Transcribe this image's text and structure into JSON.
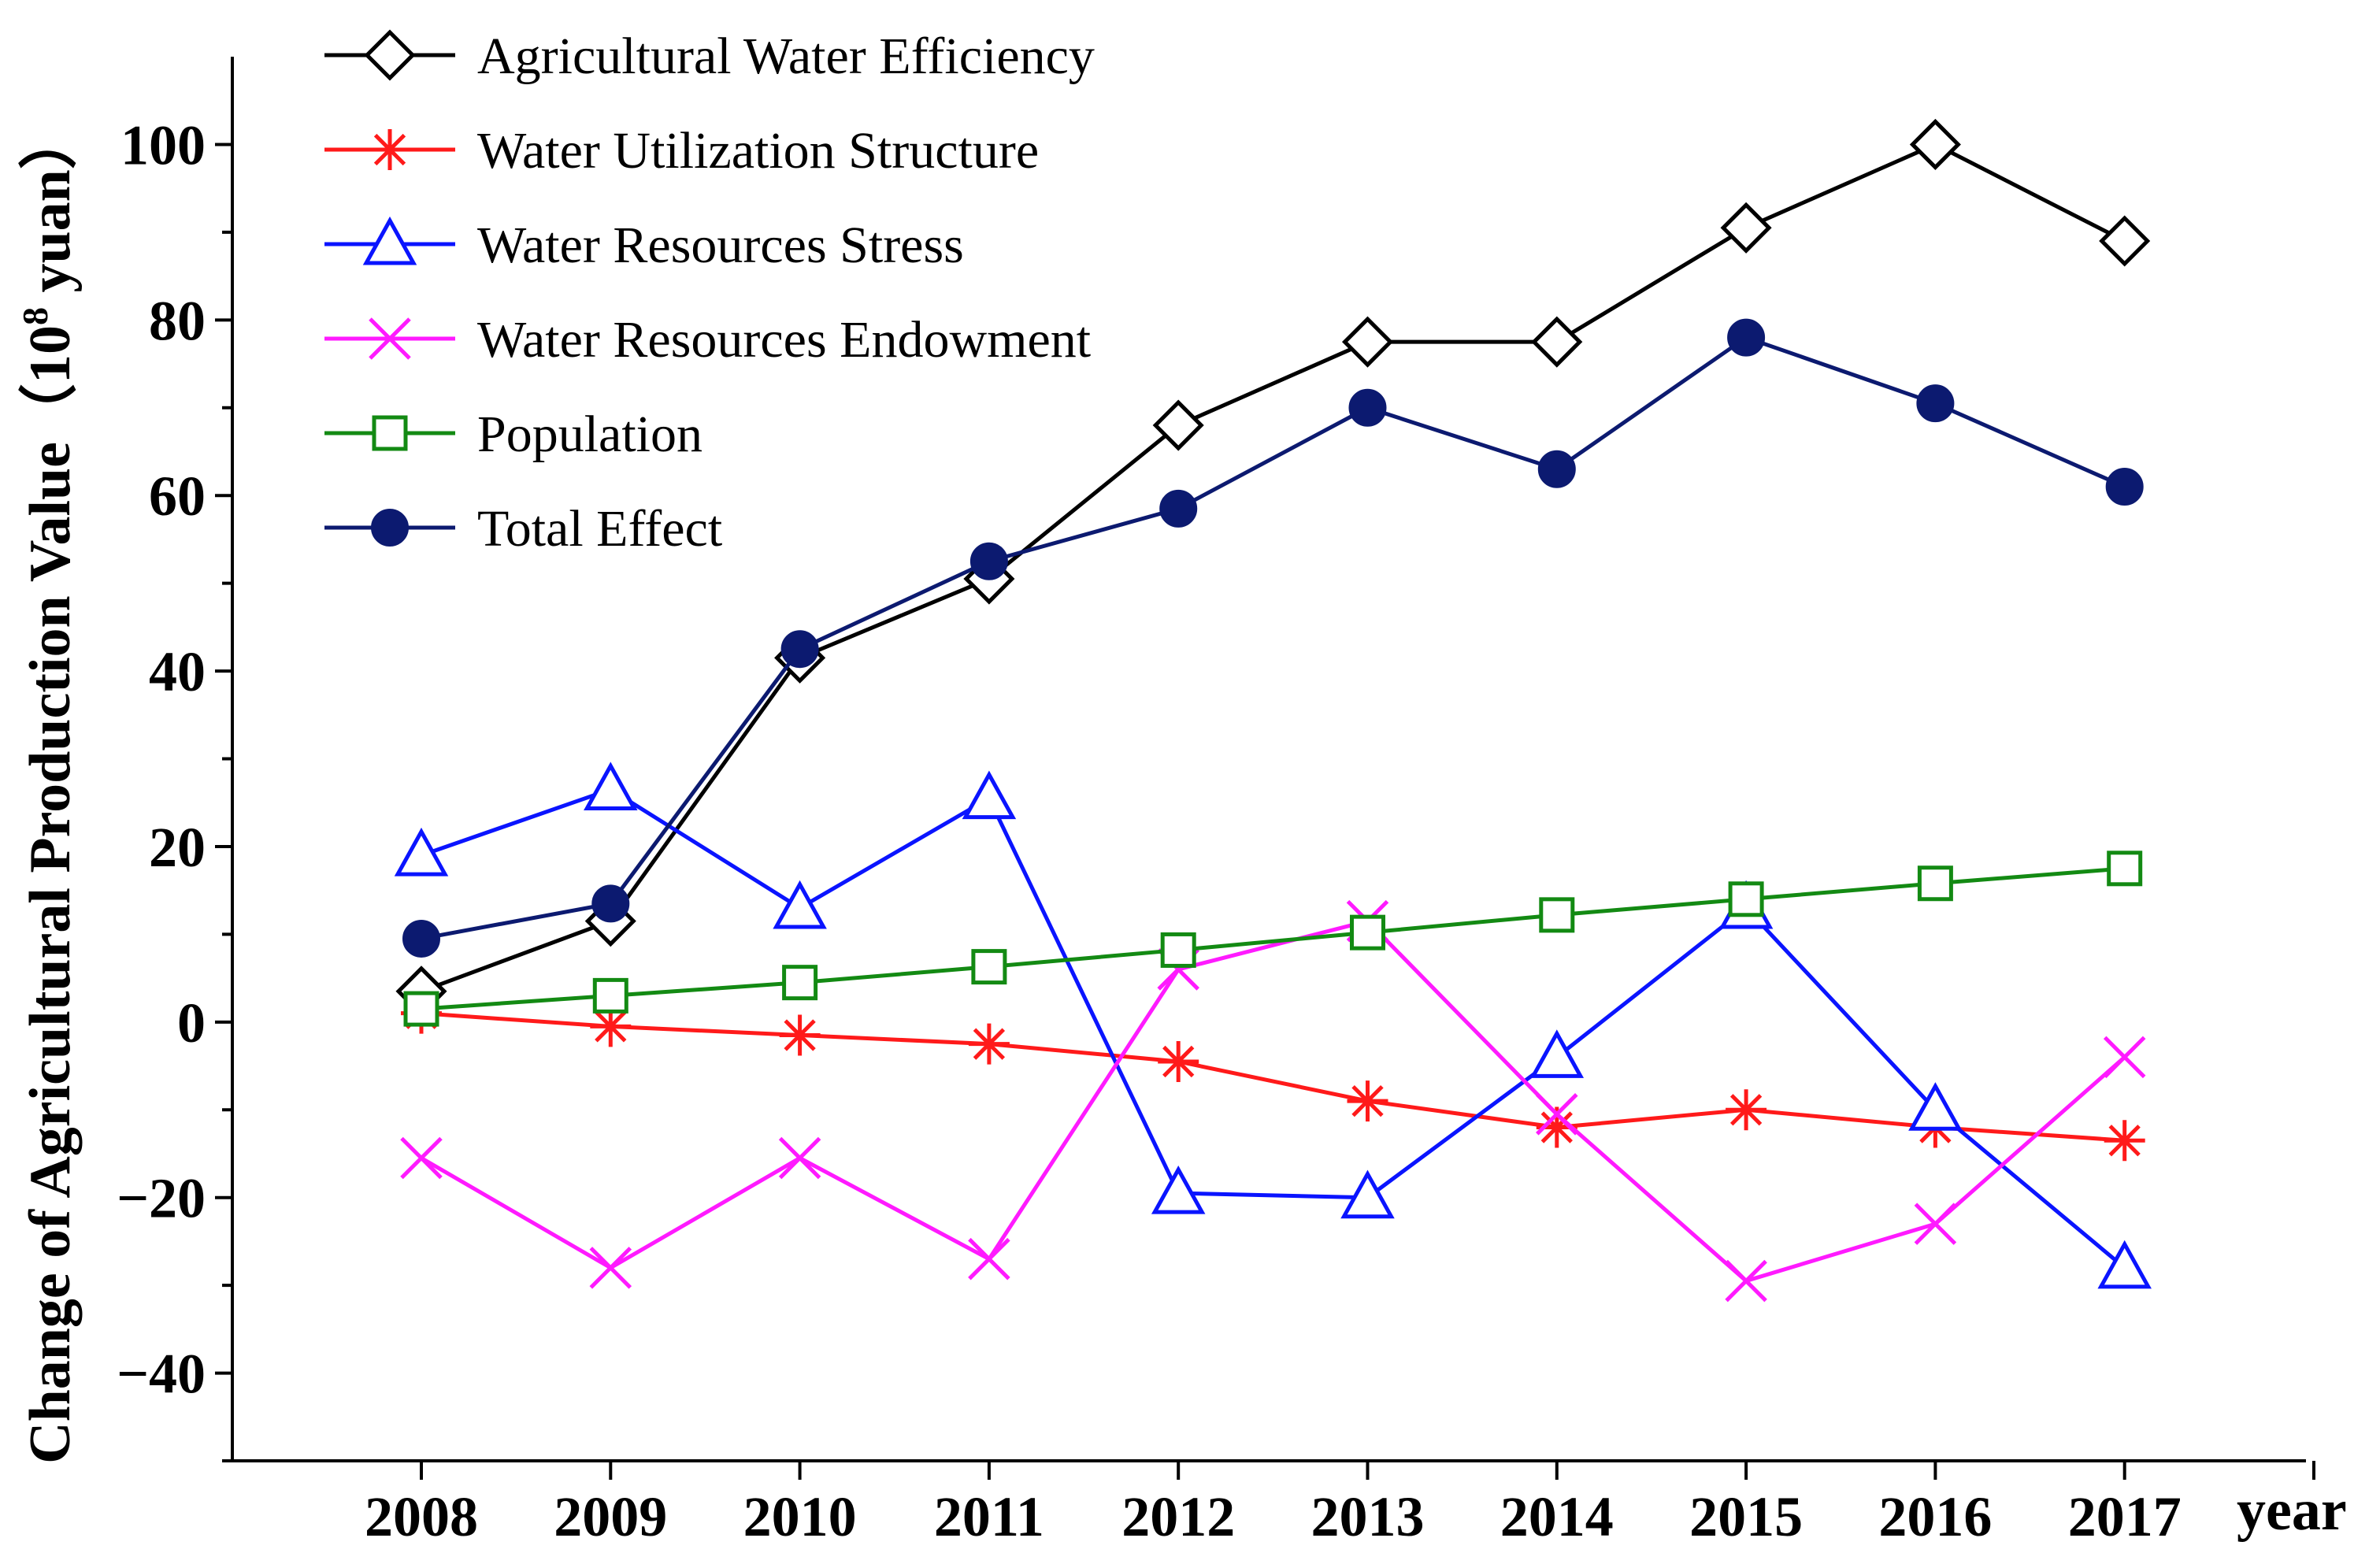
{
  "chart_data": {
    "type": "line",
    "title": "",
    "xlabel": "year",
    "ylabel": "Change of Agricultural Production Value",
    "ylabel_unit_prefix": "（10",
    "ylabel_unit_exp": "8",
    "ylabel_unit_suffix": " yuan）",
    "categories": [
      "2008",
      "2009",
      "2010",
      "2011",
      "2012",
      "2013",
      "2014",
      "2015",
      "2016",
      "2017"
    ],
    "ylim": [
      -50,
      110
    ],
    "yticks": [
      -40,
      -20,
      0,
      20,
      40,
      60,
      80,
      100
    ],
    "ytick_labels": [
      "−40",
      "−20",
      "0",
      "20",
      "40",
      "60",
      "80",
      "100"
    ],
    "grid": false,
    "legend_position": "top-left",
    "series": [
      {
        "name": "Agricultural Water Efficiency",
        "color": "#000000",
        "marker": "diamond",
        "values": [
          3.5,
          11.5,
          41.5,
          50.5,
          68,
          77.5,
          77.5,
          90.5,
          100,
          89
        ]
      },
      {
        "name": "Water Utilization Structure",
        "color": "#ff1a1a",
        "marker": "asterisk",
        "values": [
          1,
          -0.5,
          -1.5,
          -2.5,
          -4.5,
          -9,
          -12,
          -10,
          -12,
          -13.5
        ]
      },
      {
        "name": "Water Resources Stress",
        "color": "#0a14ff",
        "marker": "triangle",
        "values": [
          19,
          26.5,
          13,
          25.5,
          -19.5,
          -20,
          -4,
          13,
          -10,
          -28
        ]
      },
      {
        "name": "Water Resources Endowment",
        "color": "#ff1aff",
        "marker": "cross",
        "values": [
          -15.5,
          -28,
          -15.5,
          -27,
          6,
          11.5,
          -10.5,
          -29.5,
          -23,
          -4
        ]
      },
      {
        "name": "Population",
        "color": "#138a13",
        "marker": "square",
        "values": [
          1.5,
          3,
          4.5,
          6.3,
          8.2,
          10.2,
          12.2,
          14,
          15.8,
          17.5
        ]
      },
      {
        "name": "Total Effect",
        "color": "#0c1a70",
        "marker": "circle",
        "values": [
          9.5,
          13.5,
          42.5,
          52.5,
          58.5,
          70,
          63,
          78,
          70.5,
          61
        ]
      }
    ]
  }
}
